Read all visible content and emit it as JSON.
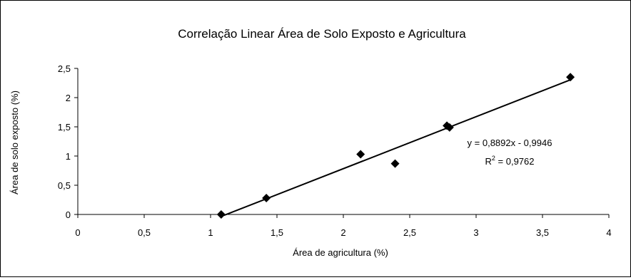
{
  "chart_data": {
    "type": "scatter",
    "title": "Correlação Linear Área de Solo Exposto e Agricultura",
    "xlabel": "Área de agricultura (%)",
    "ylabel": "Área de solo exposto (%)",
    "xlim": [
      0,
      4
    ],
    "ylim": [
      0,
      2.5
    ],
    "x_ticks": [
      "0",
      "0,5",
      "1",
      "1,5",
      "2",
      "2,5",
      "3",
      "3,5",
      "4"
    ],
    "y_ticks": [
      "0",
      "0,5",
      "1",
      "1,5",
      "2",
      "2,5"
    ],
    "grid": false,
    "legend": "none",
    "marker": "diamond",
    "points": [
      {
        "x": 1.08,
        "y": 0.0
      },
      {
        "x": 1.42,
        "y": 0.28
      },
      {
        "x": 2.13,
        "y": 1.03
      },
      {
        "x": 2.39,
        "y": 0.87
      },
      {
        "x": 2.78,
        "y": 1.52
      },
      {
        "x": 2.8,
        "y": 1.49
      },
      {
        "x": 3.71,
        "y": 2.35
      }
    ],
    "trendline": {
      "type": "linear",
      "slope": 0.8892,
      "intercept": -0.9946,
      "x_range": [
        1.1,
        3.72
      ],
      "equation": "y = 0,8892x - 0,9946",
      "r2_prefix": "R",
      "r2_sup": "2",
      "r2_suffix": " = 0,9762"
    }
  }
}
